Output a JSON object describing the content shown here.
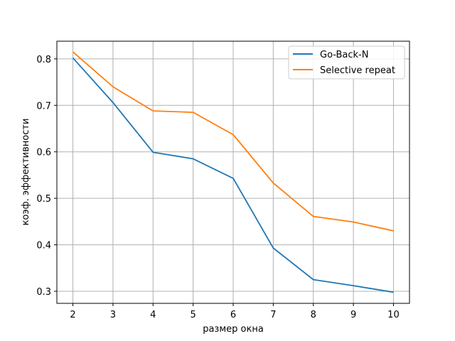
{
  "chart_data": {
    "type": "line",
    "title": "",
    "xlabel": "размер окна",
    "ylabel": "коэф. эффективности",
    "x": [
      2,
      3,
      4,
      5,
      6,
      7,
      8,
      9,
      10
    ],
    "xlim": [
      1.6,
      10.4
    ],
    "ylim": [
      0.274,
      0.838
    ],
    "xticks": [
      "2",
      "3",
      "4",
      "5",
      "6",
      "7",
      "8",
      "9",
      "10"
    ],
    "yticks": [
      "0.3",
      "0.4",
      "0.5",
      "0.6",
      "0.7",
      "0.8"
    ],
    "grid": true,
    "legend_position": "top-right",
    "series": [
      {
        "name": "Go-Back-N",
        "color": "#1f77b4",
        "values": [
          0.802,
          0.706,
          0.599,
          0.585,
          0.543,
          0.393,
          0.325,
          0.312,
          0.298
        ]
      },
      {
        "name": "Selective repeat",
        "color": "#ff7f0e",
        "values": [
          0.815,
          0.74,
          0.688,
          0.685,
          0.637,
          0.533,
          0.461,
          0.449,
          0.43
        ]
      }
    ]
  }
}
